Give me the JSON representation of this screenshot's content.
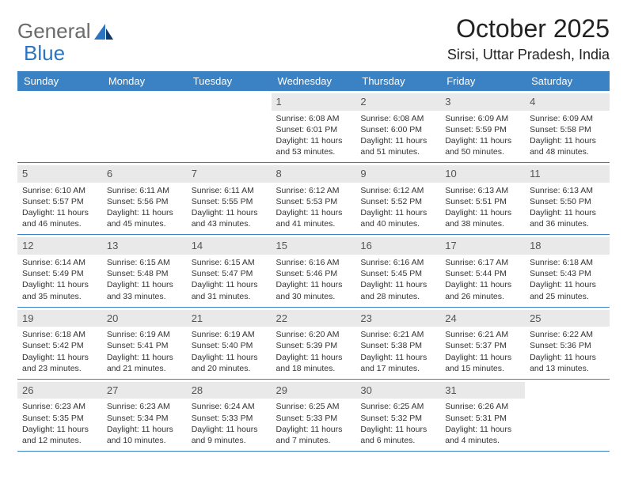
{
  "brand": {
    "part1": "General",
    "part2": "Blue",
    "accent_color": "#2b74c0",
    "muted_color": "#6b6b6b"
  },
  "title": "October 2025",
  "location": "Sirsi, Uttar Pradesh, India",
  "header_bg": "#3b82c4",
  "header_fg": "#ffffff",
  "daynum_bg": "#e9e9e9",
  "rule_color": "#3b82c4",
  "columns": [
    "Sunday",
    "Monday",
    "Tuesday",
    "Wednesday",
    "Thursday",
    "Friday",
    "Saturday"
  ],
  "font_family": "Arial",
  "title_fontsize": 32,
  "location_fontsize": 18,
  "header_fontsize": 13,
  "cell_fontsize": 10.5,
  "weeks": [
    [
      {
        "blank": true
      },
      {
        "blank": true
      },
      {
        "blank": true
      },
      {
        "day": "1",
        "sunrise": "6:08 AM",
        "sunset": "6:01 PM",
        "dl1": "Daylight: 11 hours",
        "dl2": "and 53 minutes."
      },
      {
        "day": "2",
        "sunrise": "6:08 AM",
        "sunset": "6:00 PM",
        "dl1": "Daylight: 11 hours",
        "dl2": "and 51 minutes."
      },
      {
        "day": "3",
        "sunrise": "6:09 AM",
        "sunset": "5:59 PM",
        "dl1": "Daylight: 11 hours",
        "dl2": "and 50 minutes."
      },
      {
        "day": "4",
        "sunrise": "6:09 AM",
        "sunset": "5:58 PM",
        "dl1": "Daylight: 11 hours",
        "dl2": "and 48 minutes."
      }
    ],
    [
      {
        "day": "5",
        "sunrise": "6:10 AM",
        "sunset": "5:57 PM",
        "dl1": "Daylight: 11 hours",
        "dl2": "and 46 minutes."
      },
      {
        "day": "6",
        "sunrise": "6:11 AM",
        "sunset": "5:56 PM",
        "dl1": "Daylight: 11 hours",
        "dl2": "and 45 minutes."
      },
      {
        "day": "7",
        "sunrise": "6:11 AM",
        "sunset": "5:55 PM",
        "dl1": "Daylight: 11 hours",
        "dl2": "and 43 minutes."
      },
      {
        "day": "8",
        "sunrise": "6:12 AM",
        "sunset": "5:53 PM",
        "dl1": "Daylight: 11 hours",
        "dl2": "and 41 minutes."
      },
      {
        "day": "9",
        "sunrise": "6:12 AM",
        "sunset": "5:52 PM",
        "dl1": "Daylight: 11 hours",
        "dl2": "and 40 minutes."
      },
      {
        "day": "10",
        "sunrise": "6:13 AM",
        "sunset": "5:51 PM",
        "dl1": "Daylight: 11 hours",
        "dl2": "and 38 minutes."
      },
      {
        "day": "11",
        "sunrise": "6:13 AM",
        "sunset": "5:50 PM",
        "dl1": "Daylight: 11 hours",
        "dl2": "and 36 minutes."
      }
    ],
    [
      {
        "day": "12",
        "sunrise": "6:14 AM",
        "sunset": "5:49 PM",
        "dl1": "Daylight: 11 hours",
        "dl2": "and 35 minutes."
      },
      {
        "day": "13",
        "sunrise": "6:15 AM",
        "sunset": "5:48 PM",
        "dl1": "Daylight: 11 hours",
        "dl2": "and 33 minutes."
      },
      {
        "day": "14",
        "sunrise": "6:15 AM",
        "sunset": "5:47 PM",
        "dl1": "Daylight: 11 hours",
        "dl2": "and 31 minutes."
      },
      {
        "day": "15",
        "sunrise": "6:16 AM",
        "sunset": "5:46 PM",
        "dl1": "Daylight: 11 hours",
        "dl2": "and 30 minutes."
      },
      {
        "day": "16",
        "sunrise": "6:16 AM",
        "sunset": "5:45 PM",
        "dl1": "Daylight: 11 hours",
        "dl2": "and 28 minutes."
      },
      {
        "day": "17",
        "sunrise": "6:17 AM",
        "sunset": "5:44 PM",
        "dl1": "Daylight: 11 hours",
        "dl2": "and 26 minutes."
      },
      {
        "day": "18",
        "sunrise": "6:18 AM",
        "sunset": "5:43 PM",
        "dl1": "Daylight: 11 hours",
        "dl2": "and 25 minutes."
      }
    ],
    [
      {
        "day": "19",
        "sunrise": "6:18 AM",
        "sunset": "5:42 PM",
        "dl1": "Daylight: 11 hours",
        "dl2": "and 23 minutes."
      },
      {
        "day": "20",
        "sunrise": "6:19 AM",
        "sunset": "5:41 PM",
        "dl1": "Daylight: 11 hours",
        "dl2": "and 21 minutes."
      },
      {
        "day": "21",
        "sunrise": "6:19 AM",
        "sunset": "5:40 PM",
        "dl1": "Daylight: 11 hours",
        "dl2": "and 20 minutes."
      },
      {
        "day": "22",
        "sunrise": "6:20 AM",
        "sunset": "5:39 PM",
        "dl1": "Daylight: 11 hours",
        "dl2": "and 18 minutes."
      },
      {
        "day": "23",
        "sunrise": "6:21 AM",
        "sunset": "5:38 PM",
        "dl1": "Daylight: 11 hours",
        "dl2": "and 17 minutes."
      },
      {
        "day": "24",
        "sunrise": "6:21 AM",
        "sunset": "5:37 PM",
        "dl1": "Daylight: 11 hours",
        "dl2": "and 15 minutes."
      },
      {
        "day": "25",
        "sunrise": "6:22 AM",
        "sunset": "5:36 PM",
        "dl1": "Daylight: 11 hours",
        "dl2": "and 13 minutes."
      }
    ],
    [
      {
        "day": "26",
        "sunrise": "6:23 AM",
        "sunset": "5:35 PM",
        "dl1": "Daylight: 11 hours",
        "dl2": "and 12 minutes."
      },
      {
        "day": "27",
        "sunrise": "6:23 AM",
        "sunset": "5:34 PM",
        "dl1": "Daylight: 11 hours",
        "dl2": "and 10 minutes."
      },
      {
        "day": "28",
        "sunrise": "6:24 AM",
        "sunset": "5:33 PM",
        "dl1": "Daylight: 11 hours",
        "dl2": "and 9 minutes."
      },
      {
        "day": "29",
        "sunrise": "6:25 AM",
        "sunset": "5:33 PM",
        "dl1": "Daylight: 11 hours",
        "dl2": "and 7 minutes."
      },
      {
        "day": "30",
        "sunrise": "6:25 AM",
        "sunset": "5:32 PM",
        "dl1": "Daylight: 11 hours",
        "dl2": "and 6 minutes."
      },
      {
        "day": "31",
        "sunrise": "6:26 AM",
        "sunset": "5:31 PM",
        "dl1": "Daylight: 11 hours",
        "dl2": "and 4 minutes."
      },
      {
        "blank": true
      }
    ]
  ]
}
